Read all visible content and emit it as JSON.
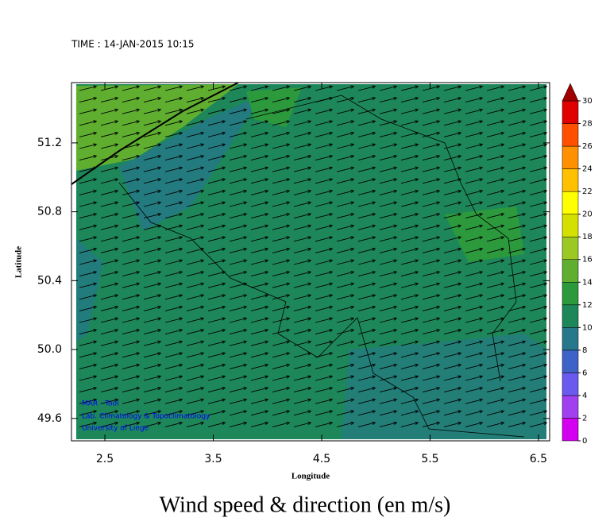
{
  "header": {
    "time": "TIME : 14-JAN-2015 10:15"
  },
  "map": {
    "xlabel": "Longitude",
    "ylabel": "Latitude",
    "xlim": [
      2.192,
      6.603
    ],
    "ylim": [
      49.47,
      51.55
    ],
    "xticks": [
      2.5,
      3.5,
      4.5,
      5.5,
      6.5
    ],
    "yticks": [
      {
        "value": 49.6,
        "label": "49.6"
      },
      {
        "value": 50,
        "label": "50.0"
      },
      {
        "value": 50.4,
        "label": "50.4"
      },
      {
        "value": 50.8,
        "label": "50.8"
      },
      {
        "value": 51.2,
        "label": "51.2"
      }
    ]
  },
  "colorbar": {
    "ticks": [
      0,
      2,
      4,
      6,
      8,
      10,
      12,
      14,
      16,
      18,
      20,
      22,
      24,
      26,
      28,
      30
    ],
    "colors": [
      "#d400f0",
      "#a040f0",
      "#6a5af0",
      "#3d62c8",
      "#26788a",
      "#1d875a",
      "#2c9a3c",
      "#5fae30",
      "#9cc824",
      "#d4e000",
      "#ffff00",
      "#ffc000",
      "#ff9000",
      "#ff5000",
      "#e00000"
    ],
    "extend_color": "#a00000"
  },
  "credits": [
    "MAR - Tool",
    "Lab. Climatology & Topoclimatology",
    "University of Liege"
  ],
  "title": "Wind speed & direction (en m/s)"
}
